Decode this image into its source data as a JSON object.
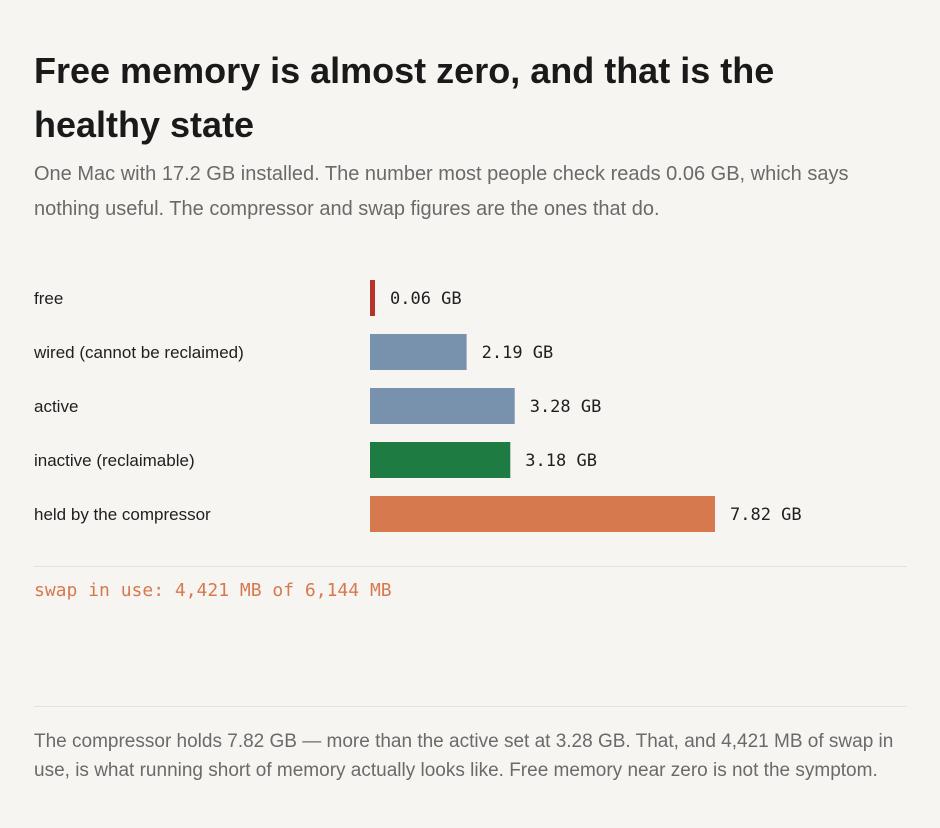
{
  "header": {
    "title": "Free memory is almost zero, and that is the healthy state",
    "subtitle": "One Mac with 17.2 GB installed. The number most people check reads 0.06 GB, which says nothing useful. The compressor and swap figures are the ones that do."
  },
  "chart_data": {
    "type": "bar",
    "orientation": "horizontal",
    "unit": "GB",
    "categories": [
      "free",
      "wired (cannot be reclaimed)",
      "active",
      "inactive (reclaimable)",
      "held by the compressor"
    ],
    "values": [
      0.06,
      2.19,
      3.28,
      3.18,
      7.82
    ],
    "value_labels": [
      "0.06 GB",
      "2.19 GB",
      "3.28 GB",
      "3.18 GB",
      "7.82 GB"
    ],
    "colors": [
      "#b5332a",
      "#7892ae",
      "#7892ae",
      "#1e7b42",
      "#d7794f"
    ],
    "xlim": [
      0,
      7.82
    ],
    "grid": false,
    "legend": "none"
  },
  "swap": {
    "text": "swap in use: 4,421 MB of 6,144 MB",
    "color": "#d7794f"
  },
  "footnote": "The compressor holds 7.82 GB — more than the active set at 3.28 GB. That, and 4,421 MB of swap in use, is what running short of memory actually looks like. Free memory near zero is not the symptom."
}
